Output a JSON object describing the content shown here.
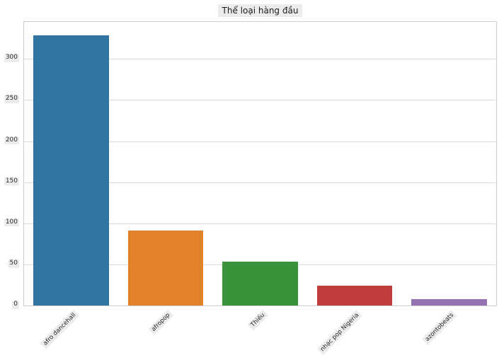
{
  "title": "Thể loại hàng đầu",
  "chart_data": {
    "type": "bar",
    "title": "Thể loại hàng đầu",
    "categories": [
      "afro dancehall",
      "afropop",
      "Thiếu",
      "nhạc pop Nigeria",
      "azontobeats"
    ],
    "values": [
      329,
      91,
      53,
      24,
      8
    ],
    "bar_colors": [
      "#3274a1",
      "#e1812c",
      "#3a923a",
      "#c03d3e",
      "#9372b2"
    ],
    "xlabel": "",
    "ylabel": "",
    "ylim": [
      0,
      345
    ],
    "yticks": [
      0,
      50,
      100,
      150,
      200,
      250,
      300
    ],
    "grid": "horizontal-behind-bars",
    "x_tick_rotation": 45,
    "legend": "none",
    "colors": {
      "grid": "#dcdcdc",
      "spine": "#cccccc",
      "text": "#262626",
      "tick_label_background": "#ececec",
      "background": "#ffffff"
    }
  }
}
